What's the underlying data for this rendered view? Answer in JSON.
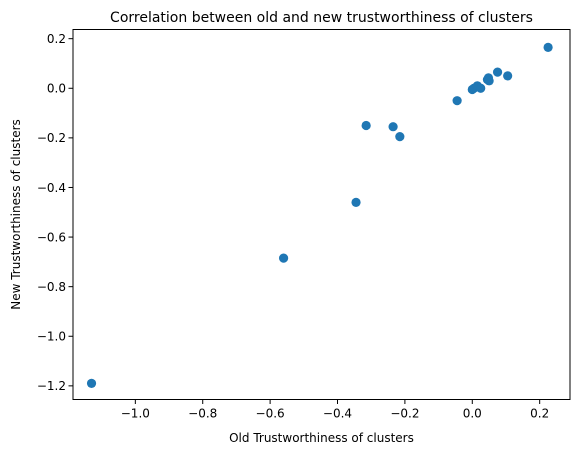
{
  "chart_data": {
    "type": "scatter",
    "title": "Correlation between old and new trustworthiness of clusters",
    "xlabel": "Old Trustworthiness of clusters",
    "ylabel": "New Trustworthiness of clusters",
    "xlim": [
      -1.185,
      0.29
    ],
    "ylim": [
      -1.255,
      0.237
    ],
    "xticks": [
      -1.0,
      -0.8,
      -0.6,
      -0.4,
      -0.2,
      0.0,
      0.2
    ],
    "xtick_labels": [
      "−1.0",
      "−0.8",
      "−0.6",
      "−0.4",
      "−0.2",
      "0.0",
      "0.2"
    ],
    "yticks": [
      0.2,
      0.0,
      -0.2,
      -0.4,
      -0.6,
      -0.8,
      -1.0,
      -1.2
    ],
    "ytick_labels": [
      "0.2",
      "0.0",
      "−0.2",
      "−0.4",
      "−0.6",
      "−0.8",
      "−1.0",
      "−1.2"
    ],
    "grid": false,
    "marker_color": "#1f77b4",
    "points": [
      {
        "x": -1.13,
        "y": -1.19
      },
      {
        "x": -0.56,
        "y": -0.685
      },
      {
        "x": -0.345,
        "y": -0.46
      },
      {
        "x": -0.315,
        "y": -0.15
      },
      {
        "x": -0.235,
        "y": -0.155
      },
      {
        "x": -0.215,
        "y": -0.195
      },
      {
        "x": -0.045,
        "y": -0.05
      },
      {
        "x": 0.0,
        "y": -0.005
      },
      {
        "x": 0.005,
        "y": 0.0
      },
      {
        "x": 0.015,
        "y": 0.01
      },
      {
        "x": 0.025,
        "y": 0.0
      },
      {
        "x": 0.045,
        "y": 0.035
      },
      {
        "x": 0.048,
        "y": 0.042
      },
      {
        "x": 0.05,
        "y": 0.03
      },
      {
        "x": 0.075,
        "y": 0.065
      },
      {
        "x": 0.105,
        "y": 0.05
      },
      {
        "x": 0.225,
        "y": 0.165
      }
    ]
  }
}
